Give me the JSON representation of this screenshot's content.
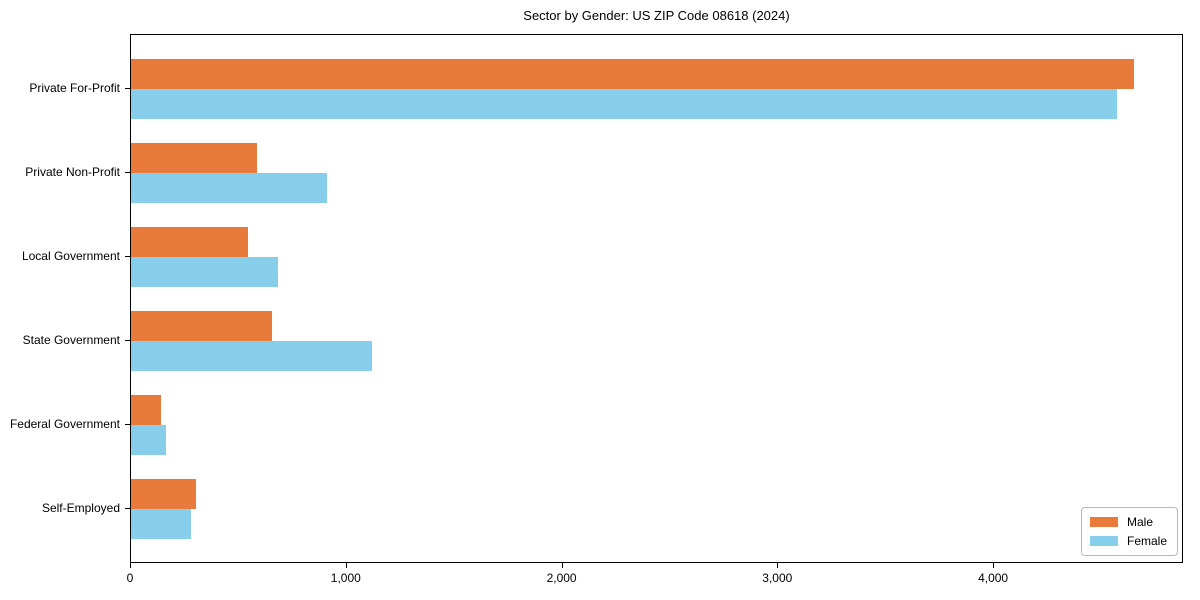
{
  "title": "Sector by Gender: US ZIP Code 08618 (2024)",
  "colors": {
    "male": "#e87a3c",
    "female": "#87ceeb",
    "spine": "#000000",
    "background": "#ffffff",
    "legend_border": "#b7b7b7"
  },
  "legend": {
    "position": "lower right",
    "items": [
      "Male",
      "Female"
    ]
  },
  "chart_data": {
    "type": "bar",
    "orientation": "horizontal",
    "title": "Sector by Gender: US ZIP Code 08618 (2024)",
    "categories": [
      "Private For-Profit",
      "Private Non-Profit",
      "Local Government",
      "State Government",
      "Federal Government",
      "Self-Employed"
    ],
    "series": [
      {
        "name": "Male",
        "color": "#e87a3c",
        "values": [
          4650,
          585,
          540,
          655,
          140,
          300
        ]
      },
      {
        "name": "Female",
        "color": "#87ceeb",
        "values": [
          4570,
          910,
          680,
          1115,
          160,
          280
        ]
      }
    ],
    "xlabel": "",
    "ylabel": "",
    "xlim": [
      0,
      4880
    ],
    "xticks": [
      0,
      1000,
      2000,
      3000,
      4000
    ],
    "xtick_labels": [
      "0",
      "1,000",
      "2,000",
      "3,000",
      "4,000"
    ],
    "grid": false,
    "legend_position": "lower right"
  }
}
